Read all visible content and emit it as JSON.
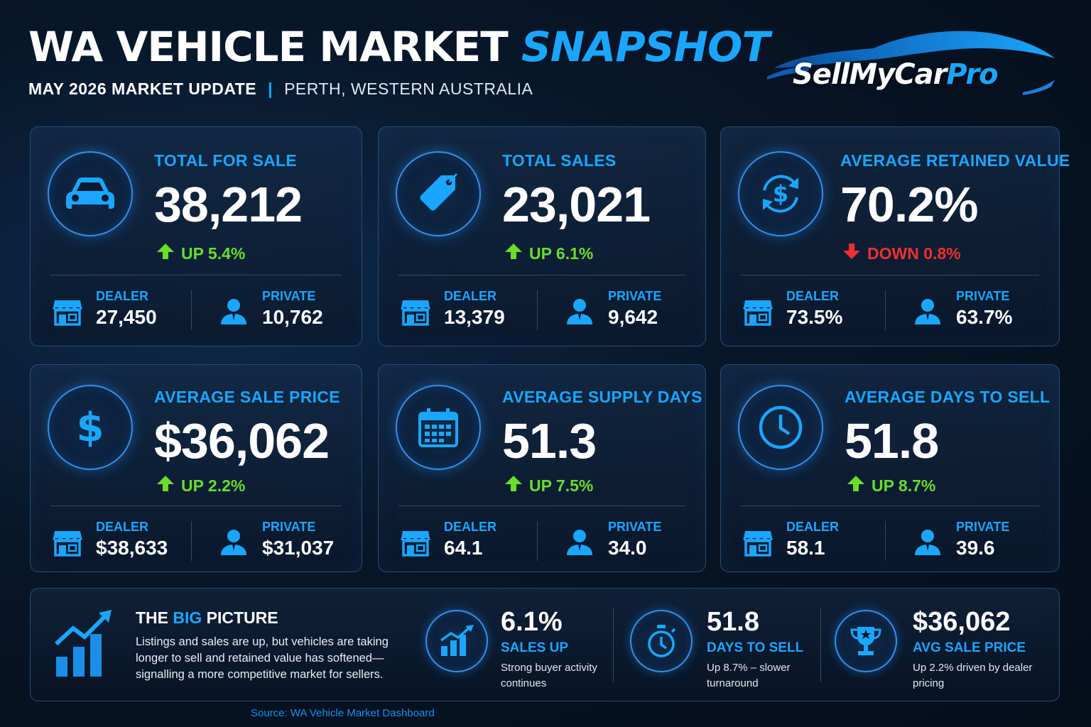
{
  "header": {
    "title_main": "WA VEHICLE MARKET",
    "title_accent": "SNAPSHOT",
    "month": "MAY 2026 MARKET UPDATE",
    "separator": "|",
    "location": "PERTH, WESTERN AUSTRALIA"
  },
  "logo": {
    "text_main": "SellMyCar",
    "text_accent": "Pro"
  },
  "colors": {
    "accent": "#1aa6ff",
    "up": "#6adc2e",
    "down": "#ef3030",
    "background": "#071628"
  },
  "cards": [
    {
      "title": "TOTAL FOR SALE",
      "value": "38,212",
      "change": "UP 5.4%",
      "direction": "up",
      "icon": "car-icon",
      "dealer_label": "DEALER",
      "dealer_value": "27,450",
      "private_label": "PRIVATE",
      "private_value": "10,762"
    },
    {
      "title": "TOTAL SALES",
      "value": "23,021",
      "change": "UP 6.1%",
      "direction": "up",
      "icon": "price-tag-icon",
      "dealer_label": "DEALER",
      "dealer_value": "13,379",
      "private_label": "PRIVATE",
      "private_value": "9,642"
    },
    {
      "title": "AVERAGE RETAINED VALUE",
      "value": "70.2%",
      "change": "DOWN 0.8%",
      "direction": "down",
      "icon": "dollar-cycle-icon",
      "dealer_label": "DEALER",
      "dealer_value": "73.5%",
      "private_label": "PRIVATE",
      "private_value": "63.7%"
    },
    {
      "title": "AVERAGE SALE PRICE",
      "value": "$36,062",
      "change": "UP 2.2%",
      "direction": "up",
      "icon": "dollar-icon",
      "dealer_label": "DEALER",
      "dealer_value": "$38,633",
      "private_label": "PRIVATE",
      "private_value": "$31,037"
    },
    {
      "title": "AVERAGE SUPPLY DAYS",
      "value": "51.3",
      "change": "UP 7.5%",
      "direction": "up",
      "icon": "calendar-icon",
      "dealer_label": "DEALER",
      "dealer_value": "64.1",
      "private_label": "PRIVATE",
      "private_value": "34.0"
    },
    {
      "title": "AVERAGE DAYS TO SELL",
      "value": "51.8",
      "change": "UP 8.7%",
      "direction": "up",
      "icon": "clock-icon",
      "dealer_label": "DEALER",
      "dealer_value": "58.1",
      "private_label": "PRIVATE",
      "private_value": "39.6"
    }
  ],
  "big_picture": {
    "title_pre": "THE ",
    "title_accent": "BIG",
    "title_post": " PICTURE",
    "text": "Listings and sales are up, but vehicles are taking longer to sell and retained value has softened—signalling a more competitive market for sellers.",
    "stats": [
      {
        "value": "6.1%",
        "label": "SALES UP",
        "desc": "Strong buyer activity continues",
        "icon": "bar-growth-icon"
      },
      {
        "value": "51.8",
        "label": "DAYS TO SELL",
        "desc": "Up 8.7% – slower turnaround",
        "icon": "stopwatch-icon"
      },
      {
        "value": "$36,062",
        "label": "AVG SALE PRICE",
        "desc": "Up 2.2% driven by dealer pricing",
        "icon": "trophy-icon"
      }
    ]
  },
  "source": "Source: WA Vehicle Market Dashboard"
}
